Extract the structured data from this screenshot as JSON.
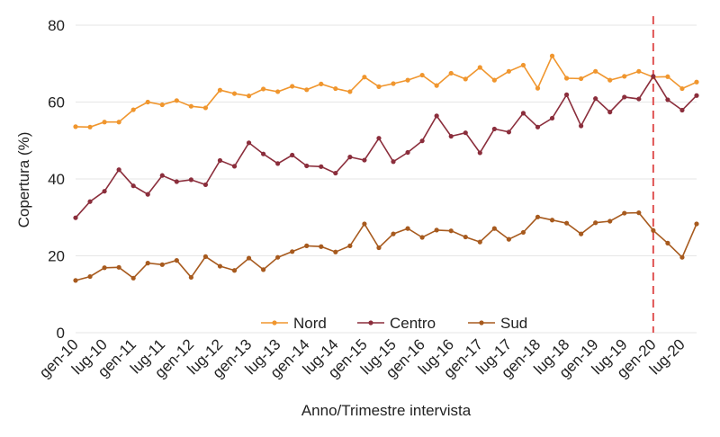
{
  "chart_data": {
    "type": "line",
    "title": "",
    "xlabel": "Anno/Trimestre intervista",
    "ylabel": "Copertura (%)",
    "ylim": [
      0,
      80
    ],
    "yticks": [
      0,
      20,
      40,
      60,
      80
    ],
    "grid": "horizontal",
    "legend": "bottom-center",
    "x": [
      "gen-10",
      "apr-10",
      "lug-10",
      "ott-10",
      "gen-11",
      "apr-11",
      "lug-11",
      "ott-11",
      "gen-12",
      "apr-12",
      "lug-12",
      "ott-12",
      "gen-13",
      "apr-13",
      "lug-13",
      "ott-13",
      "gen-14",
      "apr-14",
      "lug-14",
      "ott-14",
      "gen-15",
      "apr-15",
      "lug-15",
      "ott-15",
      "gen-16",
      "apr-16",
      "lug-16",
      "ott-16",
      "gen-17",
      "apr-17",
      "lug-17",
      "ott-17",
      "gen-18",
      "apr-18",
      "lug-18",
      "ott-18",
      "gen-19",
      "apr-19",
      "lug-19",
      "ott-19",
      "gen-20",
      "apr-20",
      "lug-20",
      "ott-20"
    ],
    "xtick_labels": [
      "gen-10",
      "lug-10",
      "gen-11",
      "lug-11",
      "gen-12",
      "lug-12",
      "gen-13",
      "lug-13",
      "gen-14",
      "lug-14",
      "gen-15",
      "lug-15",
      "gen-16",
      "lug-16",
      "gen-17",
      "lug-17",
      "gen-18",
      "lug-18",
      "gen-19",
      "lug-19",
      "gen-20",
      "lug-20"
    ],
    "vline": {
      "x": "gen-20",
      "color": "#e05252",
      "style": "dashed"
    },
    "series": [
      {
        "name": "Nord",
        "color": "#f0962e",
        "values": [
          53.6,
          53.5,
          54.8,
          54.8,
          58.0,
          60.0,
          59.3,
          60.4,
          58.9,
          58.5,
          63.1,
          62.2,
          61.6,
          63.4,
          62.7,
          64.1,
          63.2,
          64.7,
          63.5,
          62.7,
          66.5,
          64.0,
          64.8,
          65.7,
          67.0,
          64.3,
          67.5,
          66.0,
          69.0,
          65.7,
          68.0,
          69.6,
          63.6,
          72.0,
          66.2,
          66.1,
          68.0,
          65.7,
          66.7,
          68.0,
          66.5,
          66.6,
          63.5,
          65.2
        ]
      },
      {
        "name": "Centro",
        "color": "#8b2e3c",
        "values": [
          29.9,
          34.1,
          36.8,
          42.4,
          38.2,
          36.0,
          40.9,
          39.3,
          39.8,
          38.5,
          44.8,
          43.3,
          49.4,
          46.5,
          44.0,
          46.2,
          43.4,
          43.2,
          41.5,
          45.7,
          44.9,
          50.6,
          44.5,
          46.9,
          49.9,
          56.4,
          51.1,
          52.0,
          46.8,
          53.0,
          52.2,
          57.1,
          53.5,
          55.8,
          61.9,
          53.8,
          60.9,
          57.4,
          61.3,
          60.8,
          66.7,
          60.6,
          57.9,
          61.7
        ]
      },
      {
        "name": "Sud",
        "color": "#a75a1e",
        "values": [
          13.6,
          14.6,
          16.9,
          17.0,
          14.2,
          18.1,
          17.7,
          18.8,
          14.4,
          19.8,
          17.3,
          16.2,
          19.4,
          16.4,
          19.6,
          21.1,
          22.6,
          22.4,
          21.0,
          22.6,
          28.3,
          22.1,
          25.7,
          27.1,
          24.8,
          26.7,
          26.5,
          24.9,
          23.6,
          27.1,
          24.3,
          26.1,
          30.1,
          29.3,
          28.5,
          25.7,
          28.6,
          29.0,
          31.1,
          31.2,
          26.6,
          23.3,
          19.6,
          28.3
        ]
      }
    ]
  }
}
